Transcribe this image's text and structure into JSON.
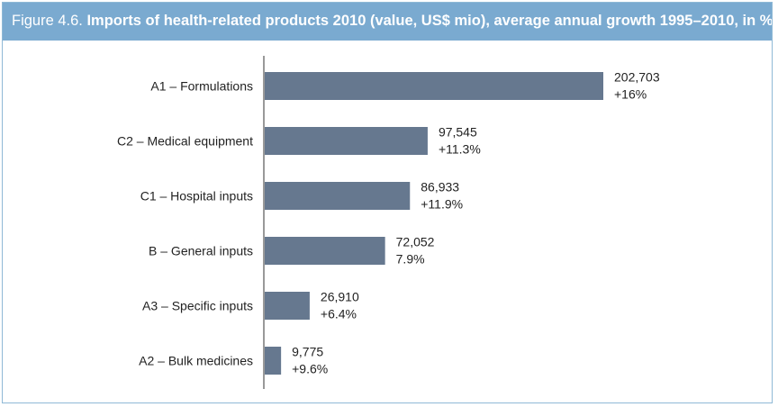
{
  "header": {
    "figure_label": "Figure 4.6.",
    "title": "Imports of health-related products 2010 (value, US$ mio), average annual growth 1995–2010, in %"
  },
  "colors": {
    "bar": "#66788f",
    "header_bg": "#7aaad0",
    "border": "#8fb9d6",
    "axis": "#333333"
  },
  "chart_data": {
    "type": "bar",
    "orientation": "horizontal",
    "title": "Imports of health-related products 2010 (value, US$ mio), average annual growth 1995–2010, in %",
    "categories": [
      "A1 – Formulations",
      "C2 – Medical equipment",
      "C1 – Hospital inputs",
      "B – General inputs",
      "A3 – Specific inputs",
      "A2 – Bulk medicines"
    ],
    "values": [
      202703,
      97545,
      86933,
      72052,
      26910,
      9775
    ],
    "value_labels": [
      "202,703",
      "97,545",
      "86,933",
      "72,052",
      "26,910",
      "9,775"
    ],
    "growth_labels": [
      "+16%",
      "+11.3%",
      "+11.9%",
      "7.9%",
      "+6.4%",
      "+9.6%"
    ],
    "xlim": [
      0,
      202703
    ],
    "grid": false,
    "legend": "none"
  }
}
